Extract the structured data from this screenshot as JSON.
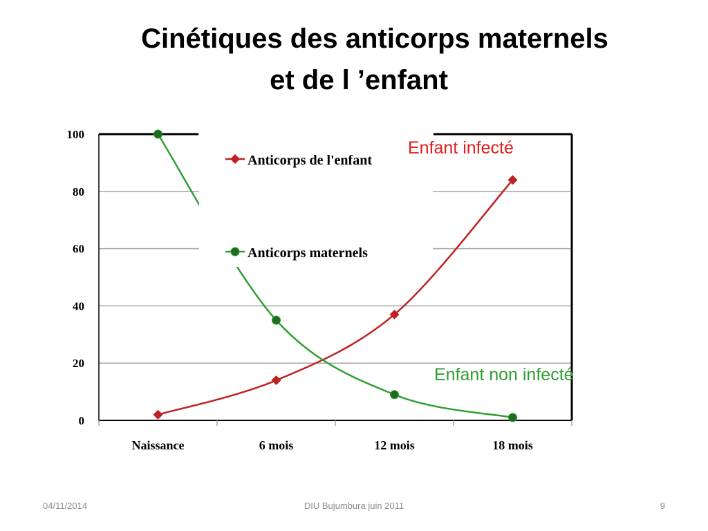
{
  "slide": {
    "title_line1": "Cinétiques des anticorps maternels",
    "title_line2": "et de l ’enfant",
    "footer_date": "04/11/2014",
    "footer_center": "DIU Bujumbura juin 2011",
    "page_number": "9"
  },
  "chart_data": {
    "type": "line",
    "categories": [
      "Naissance",
      "6 mois",
      "12 mois",
      "18 mois"
    ],
    "ylim": [
      0,
      100
    ],
    "yticks": [
      0,
      20,
      40,
      60,
      80,
      100
    ],
    "grid": true,
    "legend": "top-center",
    "series": [
      {
        "name": "Anticorps de l'enfant",
        "values": [
          2,
          14,
          37,
          84
        ],
        "color": "#c0201f",
        "marker": "diamond"
      },
      {
        "name": "Anticorps maternels",
        "values": [
          100,
          35,
          9,
          1
        ],
        "color": "#2e9e30",
        "marker": "circle"
      }
    ],
    "annotations": [
      {
        "text": "Enfant infecté",
        "color": "#e01b1b"
      },
      {
        "text": "Enfant non infecté",
        "color": "#2e9e30"
      }
    ]
  }
}
